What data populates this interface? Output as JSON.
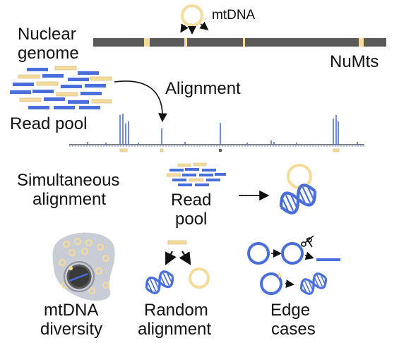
{
  "labels": {
    "nuclear_genome_line1": "Nuclear",
    "nuclear_genome_line2": "genome",
    "mtdna": "mtDNA",
    "numts": "NuMts",
    "alignment": "Alignment",
    "read_pool": "Read pool",
    "simultaneous_line1": "Simultaneous",
    "simultaneous_line2": "alignment",
    "read_pool_line1": "Read",
    "read_pool_line2": "pool",
    "mtdna_diversity_line1": "mtDNA",
    "mtdna_diversity_line2": "diversity",
    "random_alignment_line1": "Random",
    "random_alignment_line2": "alignment",
    "edge_cases_line1": "Edge",
    "edge_cases_line2": "cases"
  },
  "colors": {
    "nuclear_read": "#4a6fdb",
    "mt_read": "#f5dc9a",
    "genome_bar": "#5a5a5a",
    "numt_insert": "#f5dc9a",
    "cell_body": "#c9cdd6",
    "nucleus": "#3a3a3a"
  },
  "icons": [
    "mtdna-circle-icon",
    "dna-helix-icon",
    "scissors-icon",
    "cell-icon"
  ]
}
